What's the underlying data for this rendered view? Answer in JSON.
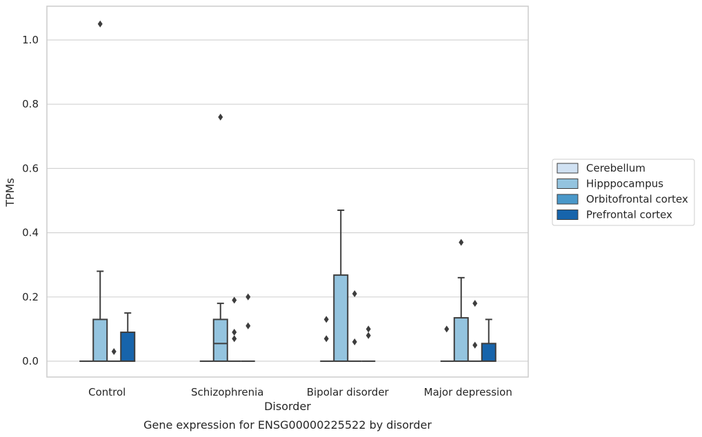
{
  "chart_data": {
    "type": "box",
    "title": "",
    "caption": "Gene expression for ENSG00000225522 by disorder",
    "xlabel": "Disorder",
    "ylabel": "TPMs",
    "categories": [
      "Control",
      "Schizophrenia",
      "Bipolar disorder",
      "Major depression"
    ],
    "ylim": [
      -0.05,
      1.1
    ],
    "yticks": [
      "0.0",
      "0.2",
      "0.4",
      "0.6",
      "0.8",
      "1.0"
    ],
    "grid": true,
    "legend_position": "right",
    "series": [
      {
        "name": "Cerebellum",
        "color": "#d0e1f2",
        "boxes": [
          {
            "q1": 0,
            "median": 0,
            "q3": 0,
            "whisker_low": 0,
            "whisker_high": 0,
            "outliers": []
          },
          {
            "q1": 0,
            "median": 0,
            "q3": 0,
            "whisker_low": 0,
            "whisker_high": 0,
            "outliers": []
          },
          {
            "q1": 0,
            "median": 0,
            "q3": 0,
            "whisker_low": 0,
            "whisker_high": 0,
            "outliers": []
          },
          {
            "q1": 0,
            "median": 0,
            "q3": 0,
            "whisker_low": 0,
            "whisker_high": 0,
            "outliers": []
          }
        ]
      },
      {
        "name": "Hipppocampus",
        "color": "#94c4df",
        "boxes": [
          {
            "q1": 0,
            "median": 0,
            "q3": 0.13,
            "whisker_low": 0,
            "whisker_high": 0.28,
            "outliers": [
              1.05
            ]
          },
          {
            "q1": 0,
            "median": 0.055,
            "q3": 0.13,
            "whisker_low": 0,
            "whisker_high": 0.18,
            "outliers": [
              0.76
            ]
          },
          {
            "q1": 0,
            "median": 0,
            "q3": 0.268,
            "whisker_low": 0,
            "whisker_high": 0.47,
            "outliers": []
          },
          {
            "q1": 0,
            "median": 0,
            "q3": 0.135,
            "whisker_low": 0,
            "whisker_high": 0.26,
            "outliers": [
              0.37
            ]
          }
        ]
      },
      {
        "name": "Orbitofrontal cortex",
        "color": "#4a98c9",
        "boxes": [
          {
            "q1": 0,
            "median": 0,
            "q3": 0,
            "whisker_low": 0,
            "whisker_high": 0,
            "outliers": [
              0.03
            ]
          },
          {
            "q1": 0,
            "median": 0,
            "q3": 0,
            "whisker_low": 0,
            "whisker_high": 0,
            "outliers": [
              0.07,
              0.09,
              0.19
            ]
          },
          {
            "q1": 0,
            "median": 0,
            "q3": 0,
            "whisker_low": 0,
            "whisker_high": 0,
            "outliers": [
              0.06,
              0.21
            ]
          },
          {
            "q1": 0,
            "median": 0,
            "q3": 0,
            "whisker_low": 0,
            "whisker_high": 0,
            "outliers": [
              0.05,
              0.18
            ]
          }
        ]
      },
      {
        "name": "Prefrontal cortex",
        "color": "#1764ab",
        "boxes": [
          {
            "q1": 0,
            "median": 0,
            "q3": 0.09,
            "whisker_low": 0,
            "whisker_high": 0.15,
            "outliers": []
          },
          {
            "q1": 0,
            "median": 0,
            "q3": 0,
            "whisker_low": 0,
            "whisker_high": 0,
            "outliers": [
              0.11,
              0.2
            ]
          },
          {
            "q1": 0,
            "median": 0,
            "q3": 0,
            "whisker_low": 0,
            "whisker_high": 0,
            "outliers": [
              0.08,
              0.1
            ]
          },
          {
            "q1": 0,
            "median": 0,
            "q3": 0.055,
            "whisker_low": 0,
            "whisker_high": 0.13,
            "outliers": []
          }
        ]
      }
    ],
    "left_outliers": [
      {
        "category": 2,
        "values": [
          0.07,
          0.13
        ]
      },
      {
        "category": 3,
        "values": [
          0.1
        ]
      }
    ]
  }
}
